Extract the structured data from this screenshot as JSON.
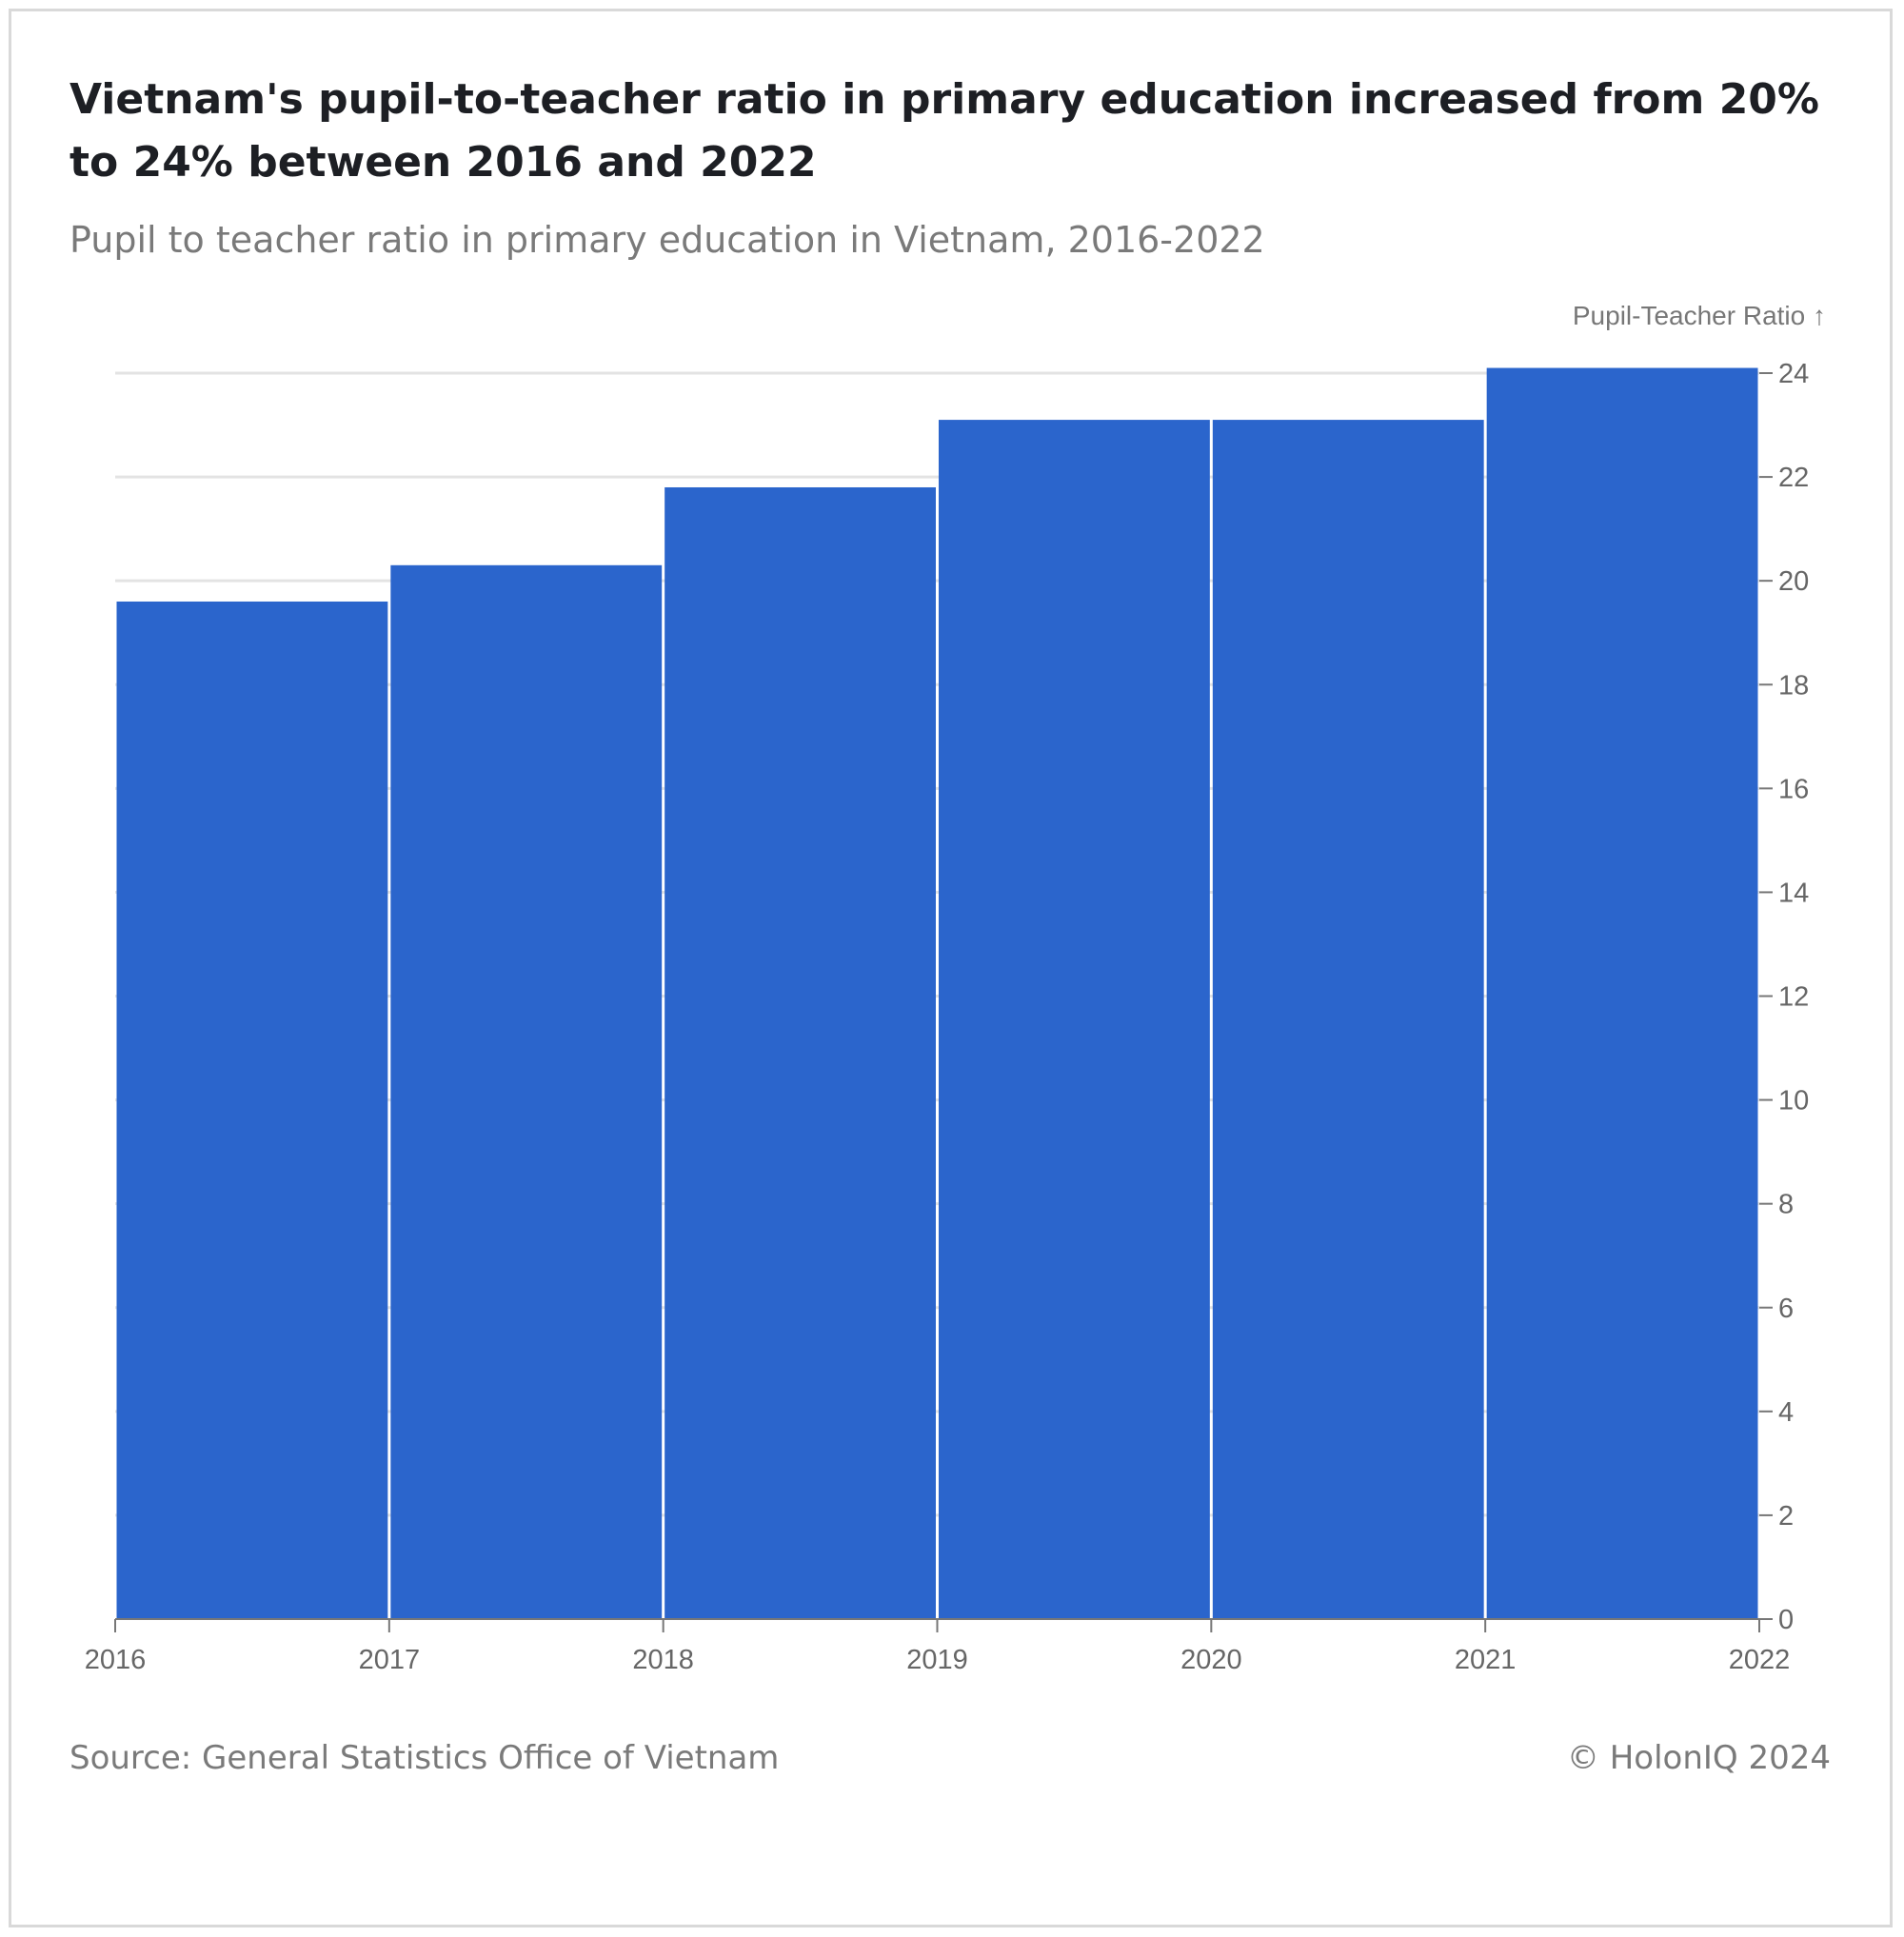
{
  "header": {
    "title": "Vietnam's pupil-to-teacher ratio in primary education increased from 20% to 24% between 2016 and 2022",
    "subtitle": "Pupil to teacher ratio in primary education in Vietnam, 2016-2022"
  },
  "footer": {
    "source": "Source: General Statistics Office of Vietnam",
    "copyright": "© HolonIQ 2024"
  },
  "colors": {
    "bar": "#2b65cc",
    "grid": "#e3e3e3",
    "axis": "#777777"
  },
  "chart_data": {
    "type": "bar",
    "title": "Vietnam's pupil-to-teacher ratio in primary education increased from 20% to 24% between 2016 and 2022",
    "subtitle": "Pupil to teacher ratio in primary education in Vietnam, 2016-2022",
    "ylabel": "Pupil-Teacher Ratio ↑",
    "xlabel": "",
    "x_ticks": [
      "2016",
      "2017",
      "2018",
      "2019",
      "2020",
      "2021",
      "2022"
    ],
    "bins": [
      {
        "start": "2016",
        "end": "2017",
        "value": 19.6
      },
      {
        "start": "2017",
        "end": "2018",
        "value": 20.3
      },
      {
        "start": "2018",
        "end": "2019",
        "value": 21.8
      },
      {
        "start": "2019",
        "end": "2020",
        "value": 23.1
      },
      {
        "start": "2020",
        "end": "2021",
        "value": 23.1
      },
      {
        "start": "2021",
        "end": "2022",
        "value": 24.1
      }
    ],
    "y_ticks": [
      "0",
      "2",
      "4",
      "6",
      "8",
      "10",
      "12",
      "14",
      "16",
      "18",
      "20",
      "22",
      "24"
    ],
    "ylim": [
      0,
      24
    ],
    "y_axis_side": "right",
    "grid": true
  }
}
